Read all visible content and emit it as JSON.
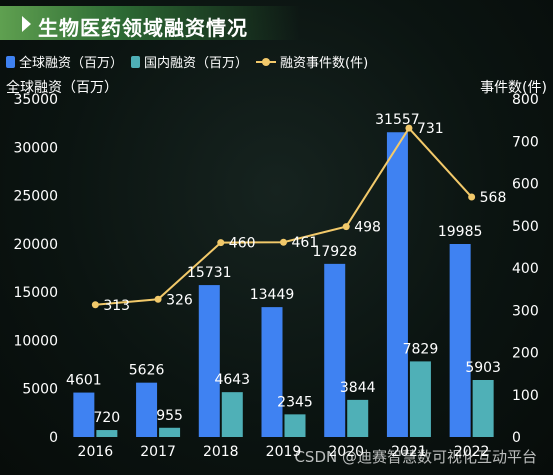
{
  "title": "生物医药领域融资情况",
  "watermark": "CSDN @迪赛智慧数可视化互动平台",
  "chart_data": {
    "type": "bar",
    "categories": [
      "2016",
      "2017",
      "2018",
      "2019",
      "2020",
      "2021",
      "2022"
    ],
    "series": [
      {
        "name": "全球融资（百万）",
        "type": "bar",
        "axis": "left",
        "color": "#3f82f2",
        "values": [
          4601,
          5626,
          15731,
          13449,
          17928,
          31557,
          19985
        ]
      },
      {
        "name": "国内融资（百万）",
        "type": "bar",
        "axis": "left",
        "color": "#4fb0b7",
        "values": [
          720,
          955,
          4643,
          2345,
          3844,
          7829,
          5903
        ]
      },
      {
        "name": "融资事件数(件)",
        "type": "line",
        "axis": "right",
        "color": "#f2c96a",
        "values": [
          313,
          326,
          460,
          461,
          498,
          731,
          568
        ]
      }
    ],
    "ylabel": "全球融资（百万）",
    "y2label": "事件数(件)",
    "ylim": [
      0,
      35000
    ],
    "y2lim": [
      0,
      800
    ],
    "yticks": [
      "0",
      "5000",
      "10000",
      "15000",
      "20000",
      "25000",
      "30000",
      "35000"
    ],
    "y2ticks": [
      "0",
      "100",
      "200",
      "300",
      "400",
      "500",
      "600",
      "700",
      "800"
    ],
    "legend_position": "top-left",
    "grid": false
  }
}
